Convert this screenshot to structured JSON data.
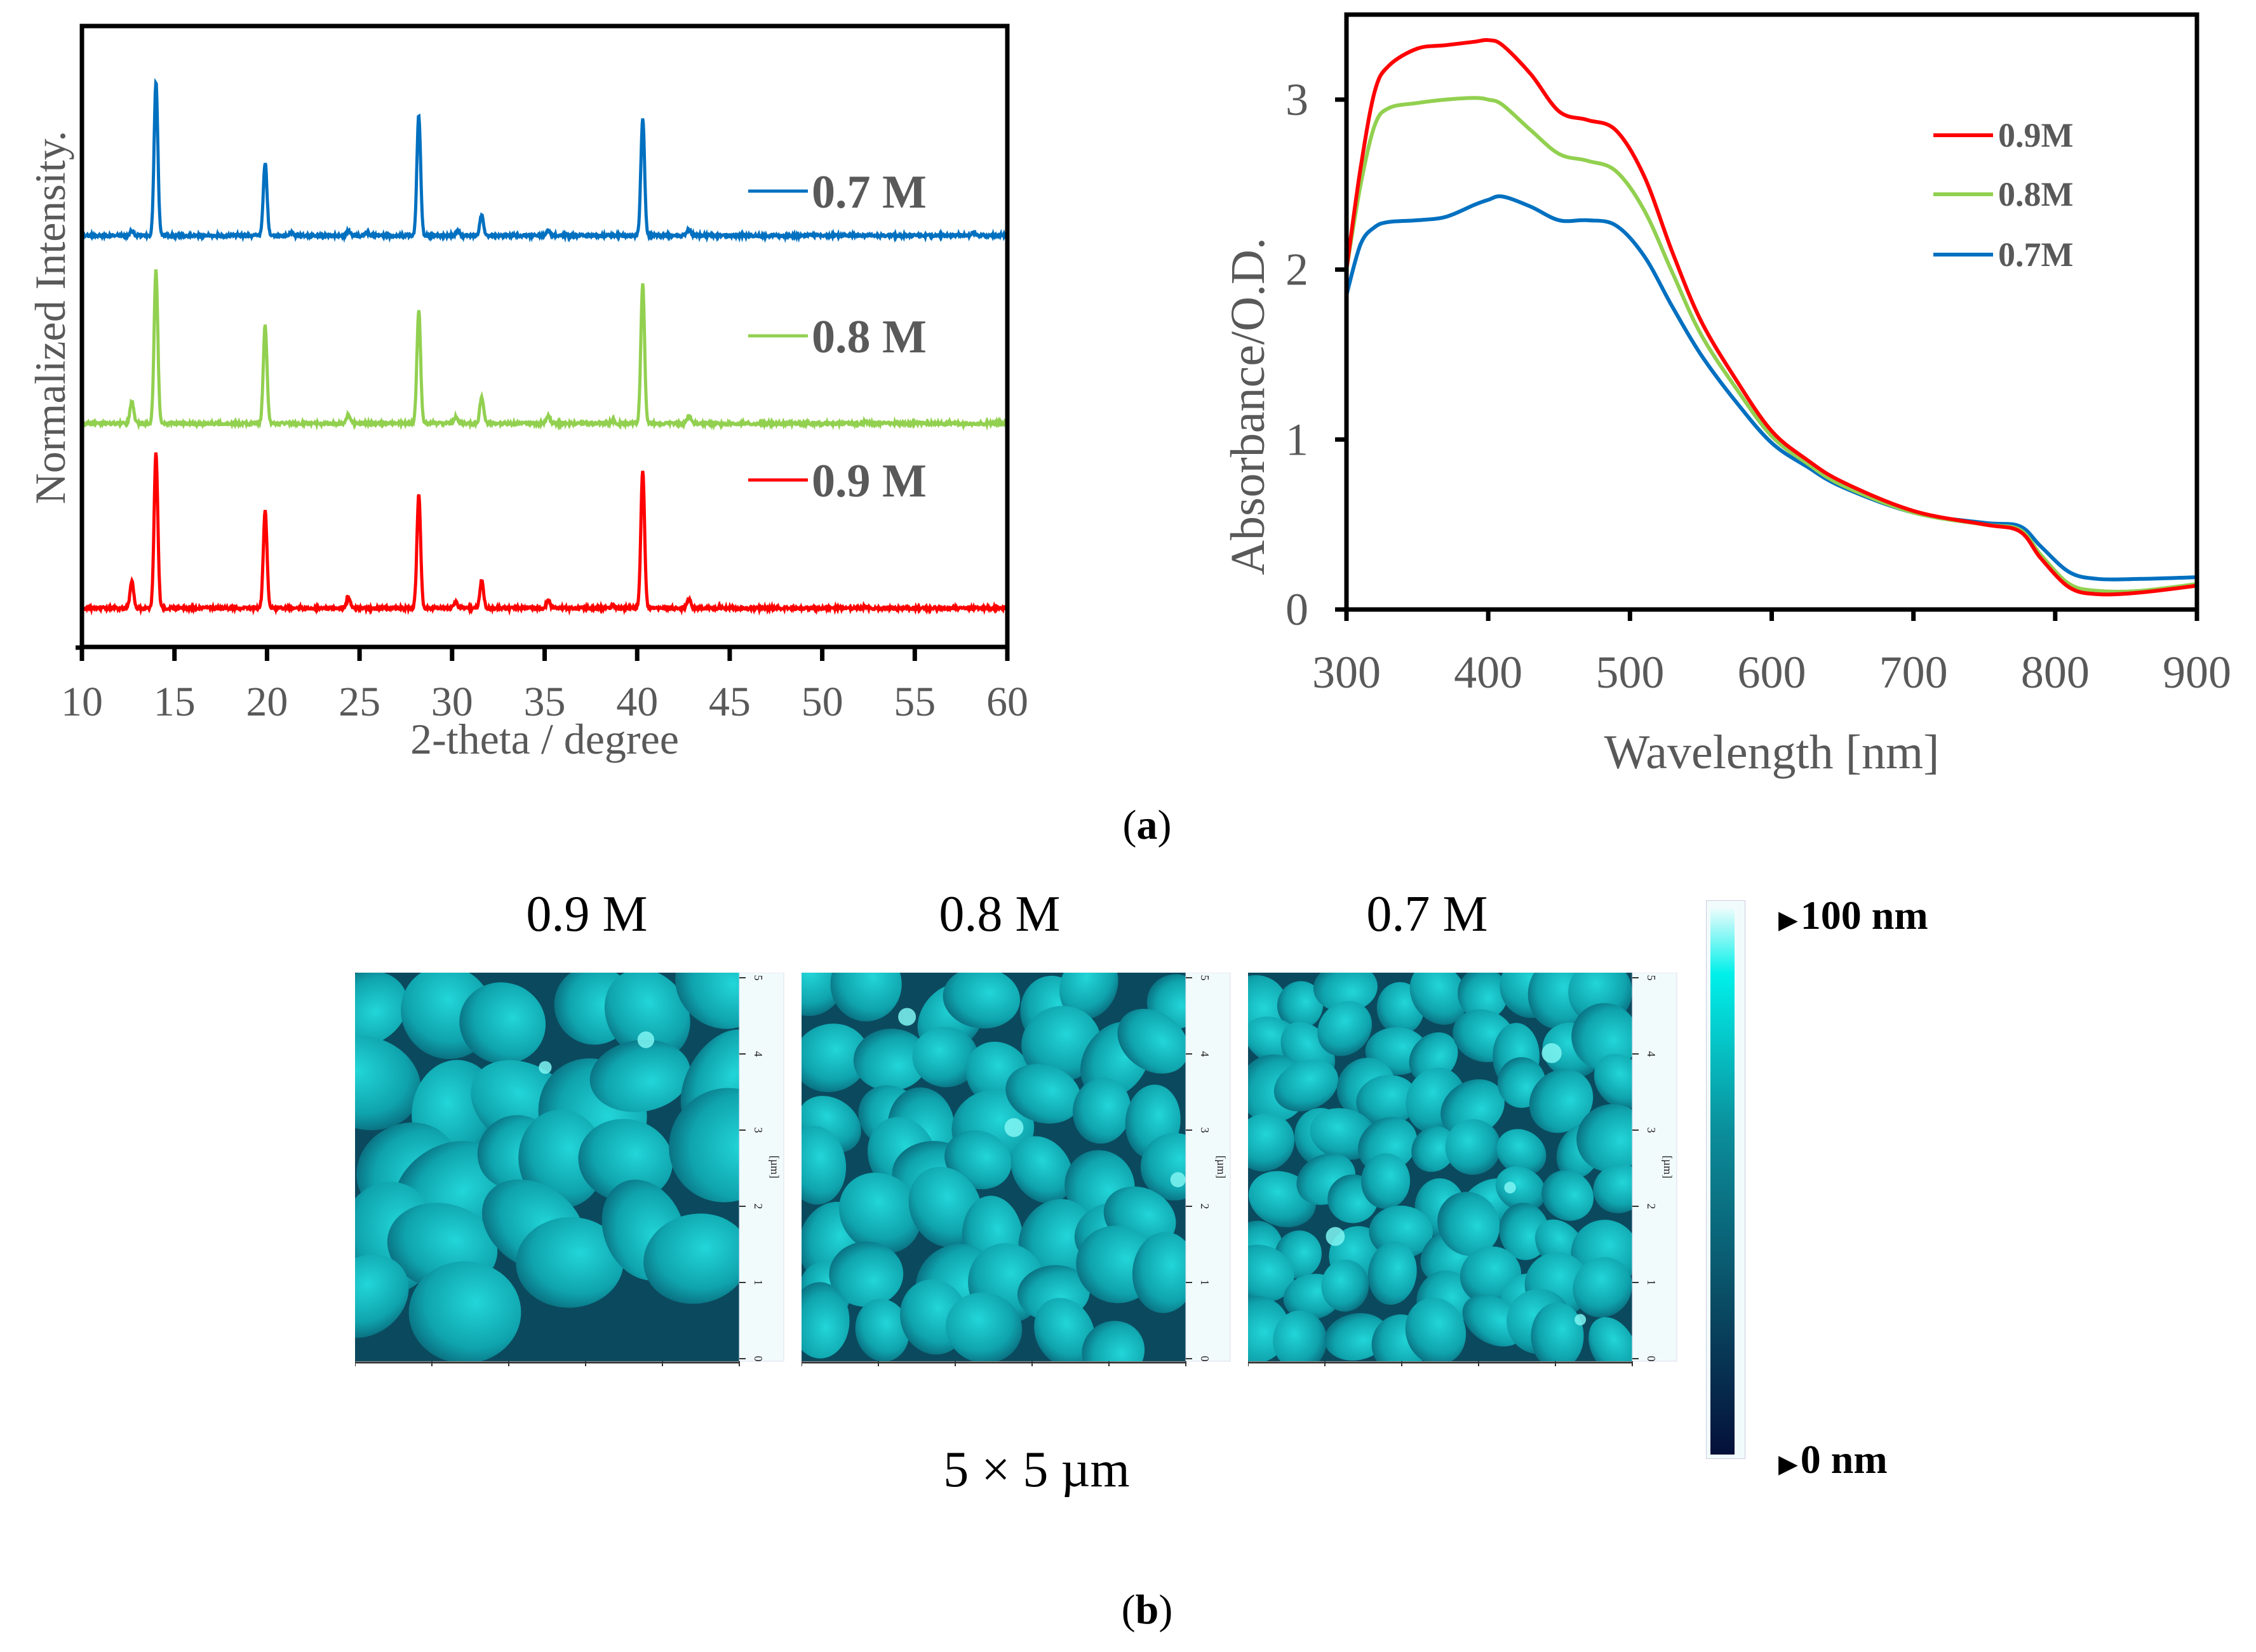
{
  "panel_a_label": "a",
  "panel_b_label": "b",
  "chart_data": [
    {
      "type": "line",
      "title": "",
      "xlabel": "2-theta / degree",
      "ylabel": "Normalized Intensity.",
      "xlim": [
        10,
        60
      ],
      "ylim": [
        0,
        4
      ],
      "xticks": [
        "10",
        "15",
        "20",
        "25",
        "30",
        "35",
        "40",
        "45",
        "50",
        "55",
        "60"
      ],
      "grid": false,
      "legend_position": "right",
      "peak_width_deg": 0.14,
      "series": [
        {
          "name": "0.7 M",
          "label": "0.7 M",
          "color": "#0070c0",
          "offset": 2.65,
          "peaks": [
            [
              12.7,
              0.03
            ],
            [
              14.0,
              0.99
            ],
            [
              19.9,
              0.47
            ],
            [
              21.3,
              0.02
            ],
            [
              24.4,
              0.03
            ],
            [
              25.4,
              0.02
            ],
            [
              28.2,
              0.78
            ],
            [
              30.3,
              0.03
            ],
            [
              31.6,
              0.13
            ],
            [
              35.2,
              0.03
            ],
            [
              40.3,
              0.76
            ],
            [
              42.8,
              0.04
            ],
            [
              58.2,
              0.02
            ]
          ]
        },
        {
          "name": "0.8 M",
          "label": "0.8 M",
          "color": "#92d050",
          "offset": 1.44,
          "peaks": [
            [
              12.7,
              0.14
            ],
            [
              14.0,
              0.99
            ],
            [
              19.9,
              0.63
            ],
            [
              24.4,
              0.06
            ],
            [
              28.2,
              0.73
            ],
            [
              30.2,
              0.04
            ],
            [
              31.6,
              0.17
            ],
            [
              35.2,
              0.05
            ],
            [
              38.7,
              0.02
            ],
            [
              40.3,
              0.9
            ],
            [
              42.8,
              0.05
            ],
            [
              52.3,
              0.01
            ]
          ]
        },
        {
          "name": "0.9 M",
          "label": "0.9 M",
          "color": "#ff0000",
          "offset": 0.25,
          "peaks": [
            [
              12.7,
              0.17
            ],
            [
              14.0,
              1.0
            ],
            [
              19.9,
              0.63
            ],
            [
              24.4,
              0.07
            ],
            [
              28.2,
              0.73
            ],
            [
              30.2,
              0.04
            ],
            [
              31.6,
              0.18
            ],
            [
              35.2,
              0.05
            ],
            [
              38.7,
              0.02
            ],
            [
              40.3,
              0.89
            ],
            [
              42.8,
              0.06
            ],
            [
              52.3,
              0.01
            ]
          ]
        }
      ]
    },
    {
      "type": "line",
      "title": "",
      "xlabel": "Wavelength [nm]",
      "ylabel": "Absorbance/O.D.",
      "xlim": [
        300,
        900
      ],
      "ylim": [
        0,
        3.5
      ],
      "xticks": [
        "300",
        "400",
        "500",
        "600",
        "700",
        "800",
        "900"
      ],
      "yticks": [
        "0",
        "1",
        "2",
        "3"
      ],
      "grid": false,
      "legend_position": "top-right",
      "x": [
        300,
        310,
        320,
        330,
        350,
        370,
        390,
        400,
        410,
        430,
        450,
        470,
        490,
        510,
        530,
        550,
        575,
        600,
        625,
        650,
        700,
        750,
        775,
        790,
        810,
        830,
        860,
        900
      ],
      "series": [
        {
          "name": "0.9M",
          "label": "0.9M",
          "color": "#ff0000",
          "values": [
            2.0,
            2.6,
            3.05,
            3.2,
            3.3,
            3.32,
            3.34,
            3.35,
            3.32,
            3.15,
            2.93,
            2.88,
            2.82,
            2.55,
            2.1,
            1.7,
            1.35,
            1.05,
            0.88,
            0.75,
            0.58,
            0.5,
            0.46,
            0.3,
            0.13,
            0.09,
            0.1,
            0.14
          ]
        },
        {
          "name": "0.8M",
          "label": "0.8M",
          "color": "#92d050",
          "values": [
            2.0,
            2.5,
            2.85,
            2.95,
            2.98,
            3.0,
            3.01,
            3.0,
            2.97,
            2.82,
            2.68,
            2.64,
            2.58,
            2.35,
            1.98,
            1.62,
            1.3,
            1.02,
            0.86,
            0.73,
            0.57,
            0.5,
            0.47,
            0.32,
            0.15,
            0.11,
            0.11,
            0.15
          ]
        },
        {
          "name": "0.7M",
          "label": "0.7M",
          "color": "#0070c0",
          "values": [
            1.85,
            2.15,
            2.25,
            2.28,
            2.29,
            2.31,
            2.38,
            2.41,
            2.43,
            2.37,
            2.29,
            2.29,
            2.26,
            2.08,
            1.78,
            1.5,
            1.22,
            0.98,
            0.84,
            0.72,
            0.57,
            0.51,
            0.49,
            0.37,
            0.22,
            0.18,
            0.18,
            0.19
          ]
        }
      ]
    }
  ],
  "afm": {
    "images": [
      {
        "title": "0.9 M",
        "grains": 26,
        "seed": 11
      },
      {
        "title": "0.8 M",
        "grains": 48,
        "seed": 23
      },
      {
        "title": "0.7 M",
        "grains": 72,
        "seed": 37
      }
    ],
    "axis_ticks": [
      "0",
      "1",
      "2",
      "3",
      "4",
      "5"
    ],
    "axis_unit": "[µm]",
    "scan_size": "5 × 5 µm",
    "colorbar": {
      "max_label": "100 nm",
      "min_label": "0 nm",
      "colors": [
        "#04103a",
        "#0a4e66",
        "#0b8d9a",
        "#00f0ea",
        "#eafcfc"
      ]
    }
  }
}
